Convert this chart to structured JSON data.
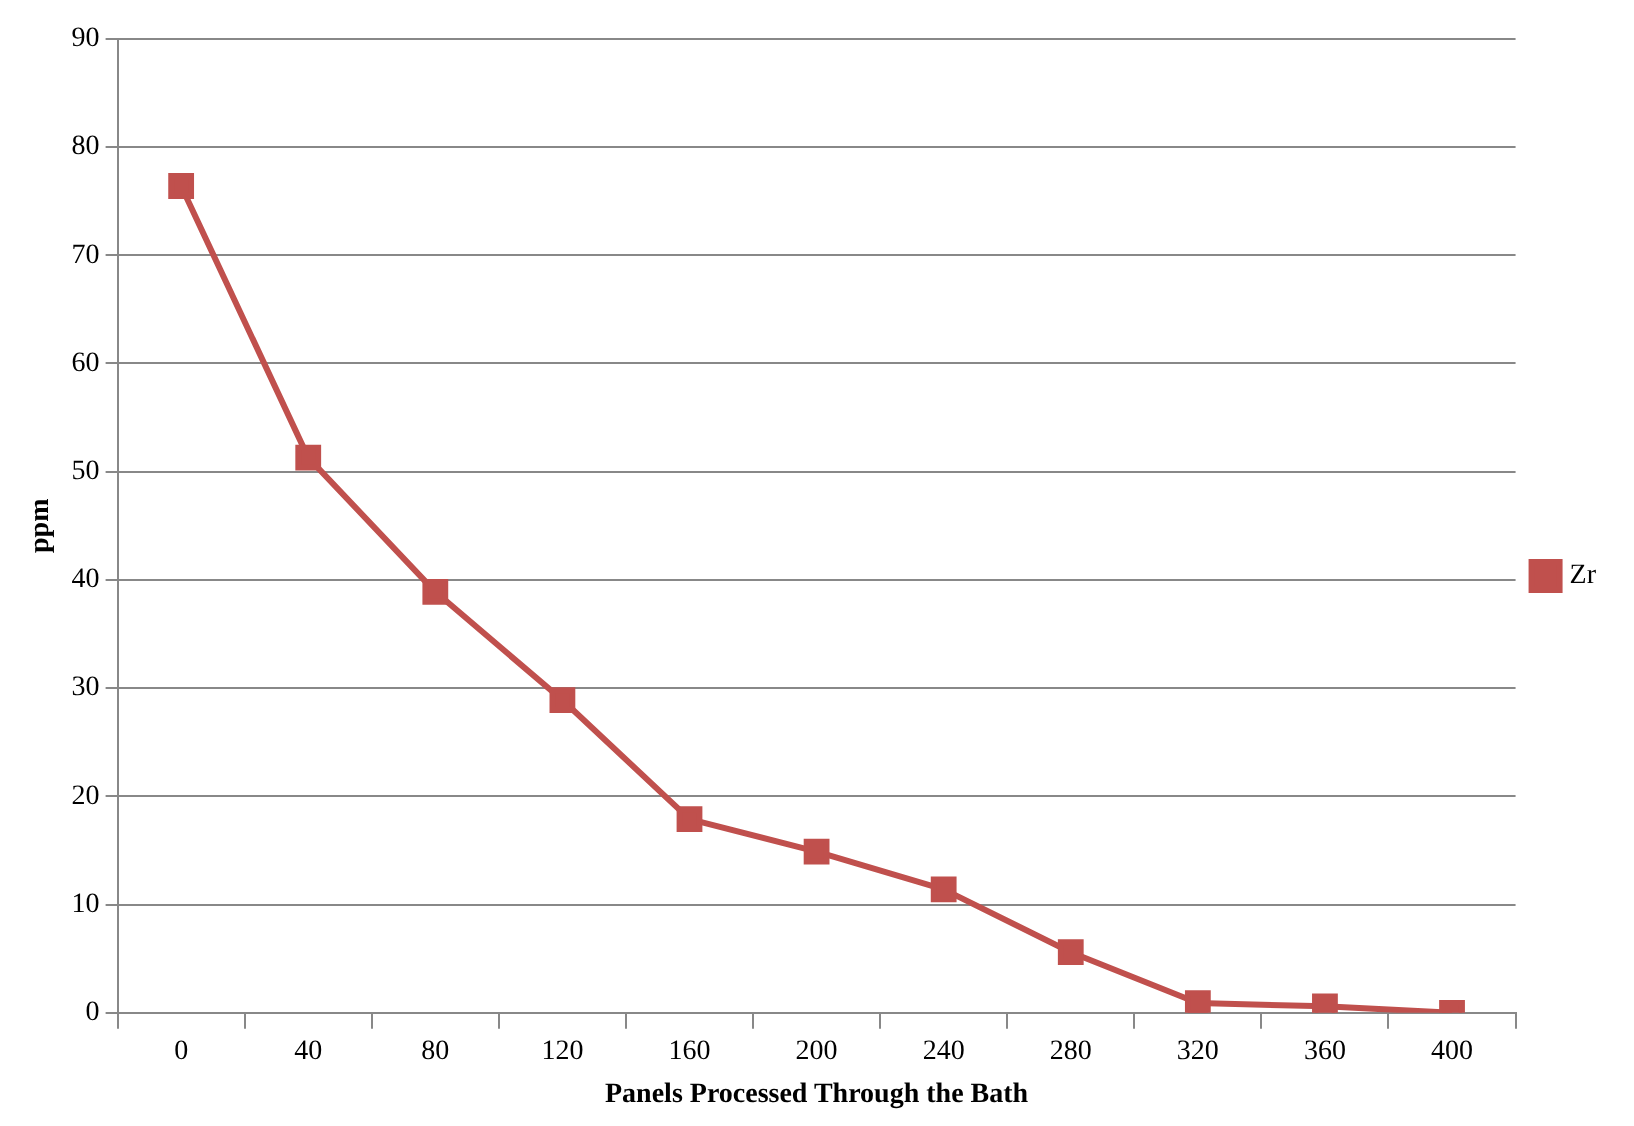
{
  "chart_data": {
    "type": "line",
    "xlabel": "Panels Processed Through the Bath",
    "ylabel": "ppm",
    "categories": [
      "0",
      "40",
      "80",
      "120",
      "160",
      "200",
      "240",
      "280",
      "320",
      "360",
      "400"
    ],
    "series": [
      {
        "name": "Zr",
        "color": "#c0504d",
        "values": [
          76.4,
          51.3,
          38.9,
          28.9,
          17.9,
          14.9,
          11.4,
          5.6,
          0.9,
          0.6,
          0
        ]
      }
    ],
    "ylim": [
      0,
      90
    ],
    "yticks": [
      0,
      10,
      20,
      30,
      40,
      50,
      60,
      70,
      80,
      90
    ],
    "grid": "y",
    "legend": "right",
    "marker": "square",
    "line_style": "solid"
  }
}
